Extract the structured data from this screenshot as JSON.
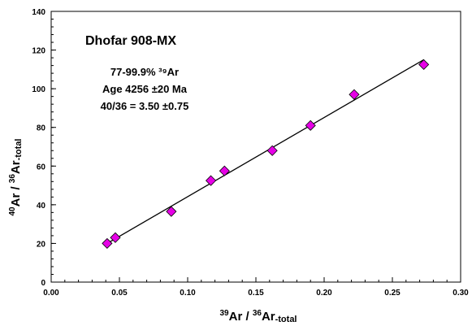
{
  "chart_data": {
    "type": "scatter",
    "title": "Dhofar 908-MX",
    "annotations": [
      "77-99.9% ³⁹Ar",
      "Age 4256 ±20 Ma",
      "40/36 = 3.50 ±0.75"
    ],
    "xlabel": {
      "sup1": "39",
      "main1": "Ar / ",
      "sup2": "36",
      "main2": "Ar",
      "sub": "-total"
    },
    "ylabel": {
      "sup1": "40",
      "main1": "Ar / ",
      "sup2": "36",
      "main2": "Ar",
      "sub": "-total"
    },
    "xlim": [
      0,
      0.3
    ],
    "ylim": [
      0,
      140
    ],
    "x_ticks": [
      "0.00",
      "0.05",
      "0.10",
      "0.15",
      "0.20",
      "0.25",
      "0.30"
    ],
    "y_ticks": [
      "0",
      "20",
      "40",
      "60",
      "80",
      "100",
      "120",
      "140"
    ],
    "grid": false,
    "marker_color": "#e600e6",
    "points": [
      {
        "x": 0.041,
        "y": 20.0
      },
      {
        "x": 0.047,
        "y": 23.0
      },
      {
        "x": 0.088,
        "y": 36.5
      },
      {
        "x": 0.117,
        "y": 52.5
      },
      {
        "x": 0.127,
        "y": 57.5
      },
      {
        "x": 0.162,
        "y": 68.0
      },
      {
        "x": 0.19,
        "y": 81.0
      },
      {
        "x": 0.222,
        "y": 97.0
      },
      {
        "x": 0.273,
        "y": 112.5
      }
    ],
    "fit_line": {
      "x1": 0.041,
      "y1": 20.0,
      "x2": 0.273,
      "y2": 115.0
    }
  }
}
